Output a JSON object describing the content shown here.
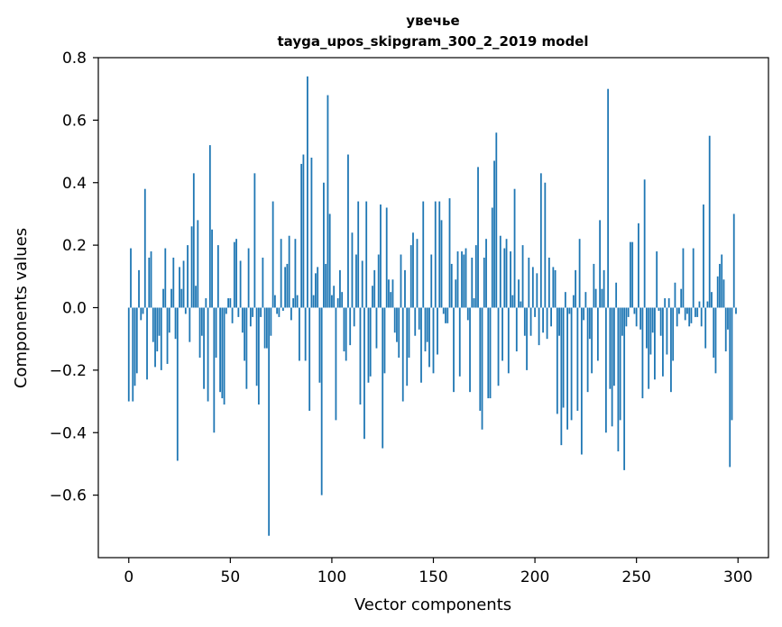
{
  "chart_data": {
    "type": "bar",
    "title": "увечье",
    "subtitle": "tayga_upos_skipgram_300_2_2019 model",
    "xlabel": "Vector components",
    "ylabel": "Components values",
    "xlim": [
      -15,
      315
    ],
    "ylim": [
      -0.8,
      0.8
    ],
    "xticks": [
      0,
      50,
      100,
      150,
      200,
      250,
      300
    ],
    "xtick_labels": [
      "0",
      "50",
      "100",
      "150",
      "200",
      "250",
      "300"
    ],
    "yticks": [
      -0.6,
      -0.4,
      -0.2,
      0.0,
      0.2,
      0.4,
      0.6,
      0.8
    ],
    "ytick_labels": [
      "−0.6",
      "−0.4",
      "−0.2",
      "0.0",
      "0.2",
      "0.4",
      "0.6",
      "0.8"
    ],
    "bar_color": "#1f77b4",
    "values": [
      -0.3,
      0.19,
      -0.3,
      -0.25,
      -0.21,
      0.12,
      -0.04,
      -0.02,
      0.38,
      -0.23,
      0.16,
      0.18,
      -0.11,
      -0.19,
      -0.14,
      -0.09,
      -0.2,
      0.06,
      0.19,
      -0.18,
      -0.08,
      0.06,
      0.16,
      -0.1,
      -0.49,
      0.13,
      0.06,
      0.15,
      -0.02,
      0.2,
      -0.11,
      0.26,
      0.43,
      0.07,
      0.28,
      -0.16,
      -0.09,
      -0.26,
      0.03,
      -0.3,
      0.52,
      0.25,
      -0.4,
      -0.16,
      0.2,
      -0.27,
      -0.29,
      -0.31,
      -0.02,
      0.03,
      0.03,
      -0.05,
      0.21,
      0.22,
      -0.03,
      0.15,
      -0.08,
      -0.17,
      -0.26,
      0.19,
      -0.06,
      -0.03,
      0.43,
      -0.25,
      -0.31,
      -0.03,
      0.16,
      -0.13,
      -0.13,
      -0.73,
      -0.09,
      0.34,
      0.04,
      -0.02,
      -0.03,
      0.22,
      -0.01,
      0.13,
      0.14,
      0.23,
      -0.04,
      0.03,
      0.22,
      0.04,
      -0.17,
      0.46,
      0.49,
      -0.17,
      0.74,
      -0.33,
      0.48,
      0.04,
      0.11,
      0.13,
      -0.24,
      -0.6,
      0.4,
      0.14,
      0.68,
      0.3,
      0.04,
      0.07,
      -0.36,
      0.03,
      0.12,
      0.05,
      -0.14,
      -0.17,
      0.49,
      -0.12,
      0.24,
      -0.06,
      0.17,
      0.34,
      -0.31,
      0.15,
      -0.42,
      0.34,
      -0.24,
      -0.22,
      0.07,
      0.12,
      -0.13,
      0.17,
      0.33,
      -0.45,
      -0.21,
      0.32,
      0.09,
      0.05,
      0.09,
      -0.08,
      -0.11,
      -0.16,
      0.17,
      -0.3,
      0.12,
      -0.25,
      -0.16,
      0.2,
      0.24,
      -0.09,
      0.22,
      -0.07,
      -0.24,
      0.34,
      -0.14,
      -0.11,
      -0.19,
      0.17,
      -0.21,
      0.34,
      -0.15,
      0.34,
      0.28,
      -0.02,
      -0.05,
      -0.05,
      0.35,
      0.14,
      -0.27,
      0.09,
      0.18,
      -0.22,
      0.18,
      0.17,
      0.19,
      -0.04,
      -0.27,
      0.16,
      0.03,
      0.2,
      0.45,
      -0.33,
      -0.39,
      0.16,
      0.22,
      -0.29,
      -0.29,
      0.32,
      0.47,
      0.56,
      -0.25,
      0.23,
      -0.17,
      0.19,
      0.22,
      -0.21,
      0.18,
      0.04,
      0.38,
      -0.14,
      0.09,
      0.02,
      0.2,
      -0.09,
      -0.2,
      0.16,
      -0.09,
      0.13,
      -0.03,
      0.11,
      -0.12,
      0.43,
      -0.08,
      0.4,
      -0.1,
      0.16,
      -0.06,
      0.13,
      0.12,
      -0.34,
      -0.09,
      -0.44,
      -0.32,
      0.05,
      -0.39,
      -0.02,
      -0.36,
      0.04,
      0.12,
      -0.33,
      0.22,
      -0.47,
      -0.04,
      0.05,
      -0.27,
      -0.1,
      -0.21,
      0.14,
      0.06,
      -0.17,
      0.28,
      0.06,
      0.12,
      -0.4,
      0.7,
      -0.26,
      -0.38,
      -0.25,
      0.08,
      -0.46,
      -0.36,
      -0.09,
      -0.52,
      -0.06,
      -0.03,
      0.21,
      0.21,
      -0.02,
      -0.06,
      0.27,
      -0.07,
      -0.29,
      0.41,
      -0.13,
      -0.26,
      -0.15,
      -0.08,
      -0.23,
      0.18,
      -0.01,
      -0.09,
      -0.22,
      0.03,
      -0.15,
      0.03,
      -0.27,
      -0.17,
      0.08,
      -0.06,
      -0.02,
      0.06,
      0.19,
      -0.04,
      -0.02,
      -0.06,
      -0.05,
      0.19,
      -0.03,
      -0.03,
      0.02,
      -0.06,
      0.33,
      -0.13,
      0.02,
      0.55,
      0.05,
      -0.16,
      -0.21,
      0.1,
      0.14,
      0.17,
      0.09,
      -0.14,
      -0.07,
      -0.51,
      -0.36,
      0.3,
      -0.02
    ]
  }
}
